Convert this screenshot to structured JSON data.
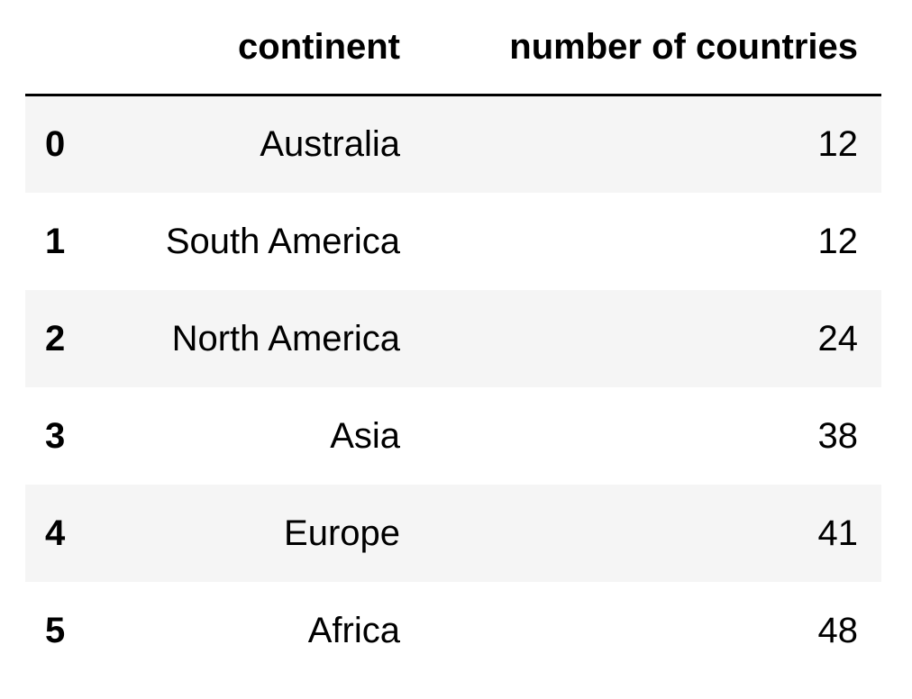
{
  "table": {
    "index_header": "",
    "columns": [
      "continent",
      "number of countries"
    ],
    "rows": [
      {
        "index": "0",
        "continent": "Australia",
        "count": "12"
      },
      {
        "index": "1",
        "continent": "South America",
        "count": "12"
      },
      {
        "index": "2",
        "continent": "North America",
        "count": "24"
      },
      {
        "index": "3",
        "continent": "Asia",
        "count": "38"
      },
      {
        "index": "4",
        "continent": "Europe",
        "count": "41"
      },
      {
        "index": "5",
        "continent": "Africa",
        "count": "48"
      }
    ]
  },
  "colors": {
    "stripe": "#f5f5f5",
    "rule": "#000000",
    "text": "#000000"
  }
}
